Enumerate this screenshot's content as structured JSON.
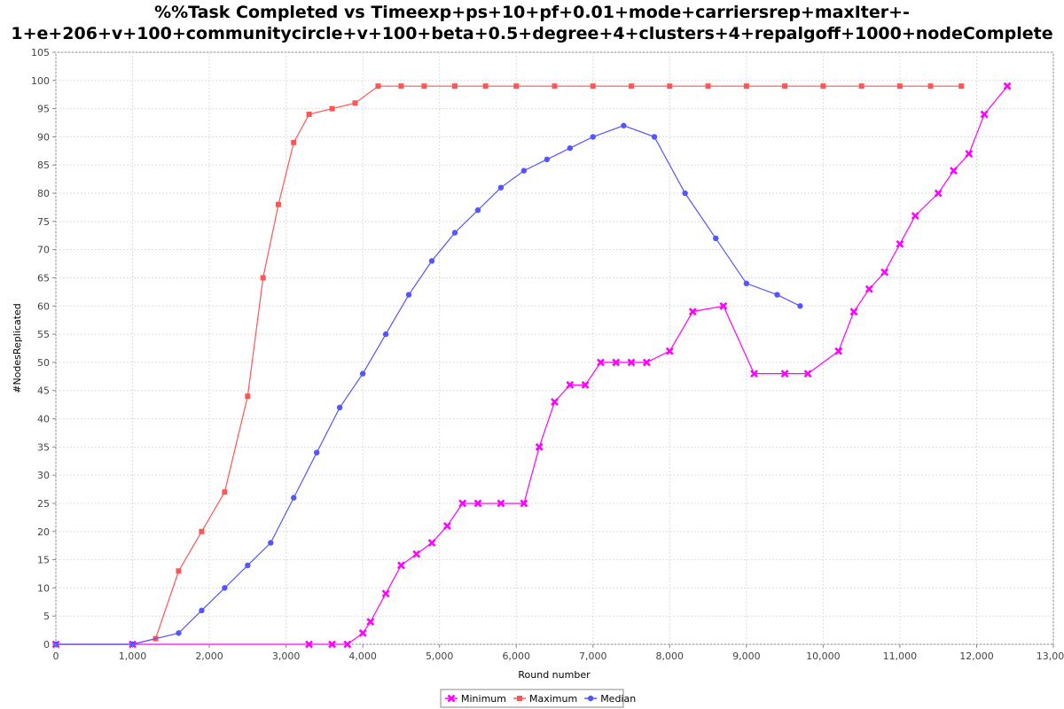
{
  "chart_data": {
    "type": "line",
    "title_line1": "%%Task Completed vs Timeexp+ps+10+pf+0.01+mode+carriersrep+maxIter+-",
    "title_line2": "1+e+206+v+100+communitycircle+v+100+beta+0.5+degree+4+clusters+4+repalgoff+1000+nodeComplete",
    "xlabel": "Round number",
    "ylabel": "#NodesReplicated",
    "xlim": [
      0,
      13000
    ],
    "ylim": [
      0,
      105
    ],
    "x_ticks": [
      0,
      1000,
      2000,
      3000,
      4000,
      5000,
      6000,
      7000,
      8000,
      9000,
      10000,
      11000,
      12000,
      13000
    ],
    "x_tick_labels": [
      "0",
      "1,000",
      "2,000",
      "3,000",
      "4,000",
      "5,000",
      "6,000",
      "7,000",
      "8,000",
      "9,000",
      "10,000",
      "11,000",
      "12,000",
      "13,000"
    ],
    "y_ticks": [
      0,
      5,
      10,
      15,
      20,
      25,
      30,
      35,
      40,
      45,
      50,
      55,
      60,
      65,
      70,
      75,
      80,
      85,
      90,
      95,
      100,
      105
    ],
    "grid": true,
    "legend_position": "bottom",
    "series": [
      {
        "name": "Minimum",
        "color": "#ff00ff",
        "marker": "x",
        "x": [
          0,
          1000,
          3300,
          3600,
          3800,
          4000,
          4100,
          4300,
          4500,
          4700,
          4900,
          5100,
          5300,
          5500,
          5800,
          6100,
          6300,
          6500,
          6700,
          6900,
          7100,
          7300,
          7500,
          7700,
          8000,
          8300,
          8700,
          9100,
          9500,
          9800,
          10200,
          10400,
          10600,
          10800,
          11000,
          11200,
          11500,
          11700,
          11900,
          12100,
          12400
        ],
        "y": [
          0,
          0,
          0,
          0,
          0,
          2,
          4,
          9,
          14,
          16,
          18,
          21,
          25,
          25,
          25,
          25,
          35,
          43,
          46,
          46,
          50,
          50,
          50,
          50,
          52,
          59,
          60,
          48,
          48,
          48,
          52,
          59,
          63,
          66,
          71,
          76,
          80,
          84,
          87,
          94,
          99
        ]
      },
      {
        "name": "Maximum",
        "color": "#ff5555",
        "marker": "square",
        "x": [
          0,
          1000,
          1300,
          1600,
          1900,
          2200,
          2500,
          2700,
          2900,
          3100,
          3300,
          3600,
          3900,
          4200,
          4500,
          4800,
          5200,
          5600,
          6000,
          6500,
          7000,
          7500,
          8000,
          8500,
          9000,
          9500,
          10000,
          10500,
          11000,
          11400,
          11800
        ],
        "y": [
          0,
          0,
          1,
          13,
          20,
          27,
          44,
          65,
          78,
          89,
          94,
          95,
          96,
          99,
          99,
          99,
          99,
          99,
          99,
          99,
          99,
          99,
          99,
          99,
          99,
          99,
          99,
          99,
          99,
          99,
          99
        ]
      },
      {
        "name": "Median",
        "color": "#5555ff",
        "marker": "circle",
        "x": [
          0,
          1000,
          1600,
          1900,
          2200,
          2500,
          2800,
          3100,
          3400,
          3700,
          4000,
          4300,
          4600,
          4900,
          5200,
          5500,
          5800,
          6100,
          6400,
          6700,
          7000,
          7400,
          7800,
          8200,
          8600,
          9000,
          9400,
          9700
        ],
        "y": [
          0,
          0,
          2,
          6,
          10,
          14,
          18,
          26,
          34,
          42,
          48,
          55,
          62,
          68,
          73,
          77,
          81,
          84,
          86,
          88,
          90,
          92,
          90,
          80,
          72,
          64,
          62,
          60
        ]
      }
    ]
  }
}
